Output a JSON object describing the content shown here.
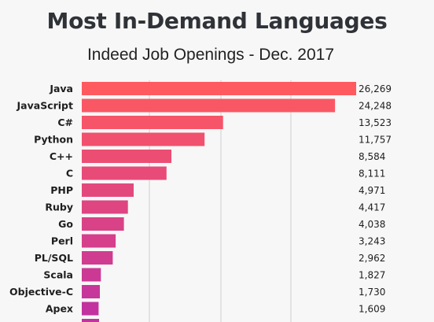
{
  "header": {
    "title": "Most In-Demand Languages",
    "subtitle": "Indeed Job Openings - Dec. 2017"
  },
  "chart_data": {
    "type": "bar",
    "orientation": "horizontal",
    "title": "Most In-Demand Languages",
    "subtitle": "Indeed Job Openings - Dec. 2017",
    "categories": [
      "Java",
      "JavaScript",
      "C#",
      "Python",
      "C++",
      "C",
      "PHP",
      "Ruby",
      "Go",
      "Perl",
      "PL/SQL",
      "Scala",
      "Objective-C",
      "Apex"
    ],
    "values": [
      26269,
      24248,
      13523,
      11757,
      8584,
      8111,
      4971,
      4417,
      4038,
      3243,
      2962,
      1827,
      1730,
      1609
    ],
    "value_labels": [
      "26,269",
      "24,248",
      "13,523",
      "11,757",
      "8,584",
      "8,111",
      "4,971",
      "4,417",
      "4,038",
      "3,243",
      "2,962",
      "1,827",
      "1,730",
      "1,609"
    ],
    "xlim": [
      0,
      26269
    ],
    "grid": true,
    "colors": {
      "start": "#ff5a5f",
      "end": "#c2339f",
      "background": "#f7f7f7",
      "grid": "#cfcfcf"
    }
  }
}
